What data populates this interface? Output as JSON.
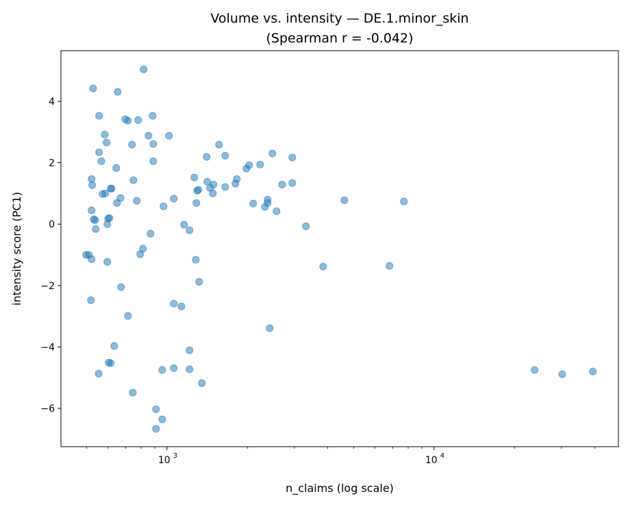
{
  "chart_data": {
    "type": "scatter",
    "title": "Volume vs. intensity — DE.1.minor_skin",
    "subtitle": "(Spearman r = -0.042)",
    "xlabel": "n_claims (log scale)",
    "ylabel": "intensity score (PC1)",
    "xscale": "log",
    "xlim": [
      401,
      49000
    ],
    "ylim": [
      -7.25,
      5.65
    ],
    "xticks": [
      {
        "value": 1000,
        "base": "10",
        "exp": "3"
      },
      {
        "value": 10000,
        "base": "10",
        "exp": "4"
      }
    ],
    "yticks": [
      4,
      2,
      0,
      -2,
      -4,
      -6
    ],
    "ytick_labels": [
      "4",
      "2",
      "0",
      "−2",
      "−4",
      "−6"
    ],
    "grid": false,
    "color": "#1f77b4",
    "alpha": 0.5,
    "points": [
      [
        818,
        5.04
      ],
      [
        529,
        4.42
      ],
      [
        654,
        4.31
      ],
      [
        557,
        3.53
      ],
      [
        698,
        3.42
      ],
      [
        714,
        3.37
      ],
      [
        780,
        3.39
      ],
      [
        884,
        3.53
      ],
      [
        585,
        2.92
      ],
      [
        594,
        2.66
      ],
      [
        740,
        2.59
      ],
      [
        853,
        2.88
      ],
      [
        889,
        2.61
      ],
      [
        1018,
        2.88
      ],
      [
        557,
        2.34
      ],
      [
        568,
        2.05
      ],
      [
        646,
        1.83
      ],
      [
        889,
        2.05
      ],
      [
        522,
        1.47
      ],
      [
        525,
        1.27
      ],
      [
        616,
        1.16
      ],
      [
        620,
        1.16
      ],
      [
        749,
        1.43
      ],
      [
        574,
        0.98
      ],
      [
        588,
        1.0
      ],
      [
        670,
        0.85
      ],
      [
        650,
        0.69
      ],
      [
        771,
        0.76
      ],
      [
        971,
        0.58
      ],
      [
        1061,
        0.83
      ],
      [
        522,
        0.45
      ],
      [
        532,
        0.16
      ],
      [
        538,
        0.13
      ],
      [
        602,
        0.18
      ],
      [
        609,
        0.2
      ],
      [
        598,
        0.0
      ],
      [
        541,
        -0.16
      ],
      [
        868,
        -0.31
      ],
      [
        813,
        -0.8
      ],
      [
        794,
        -0.98
      ],
      [
        498,
        -1.0
      ],
      [
        510,
        -1.0
      ],
      [
        522,
        -1.14
      ],
      [
        598,
        -1.23
      ],
      [
        673,
        -2.05
      ],
      [
        519,
        -2.48
      ],
      [
        714,
        -2.99
      ],
      [
        635,
        -3.97
      ],
      [
        605,
        -4.51
      ],
      [
        616,
        -4.53
      ],
      [
        555,
        -4.87
      ],
      [
        745,
        -5.49
      ],
      [
        960,
        -4.75
      ],
      [
        910,
        -6.03
      ],
      [
        960,
        -6.36
      ],
      [
        910,
        -6.67
      ],
      [
        1061,
        -2.59
      ],
      [
        1132,
        -2.68
      ],
      [
        1215,
        -4.11
      ],
      [
        1215,
        -4.73
      ],
      [
        1061,
        -4.69
      ],
      [
        1159,
        -0.02
      ],
      [
        1215,
        -0.2
      ],
      [
        1282,
        -1.16
      ],
      [
        1320,
        -1.88
      ],
      [
        1351,
        -5.18
      ],
      [
        1266,
        1.52
      ],
      [
        1297,
        1.09
      ],
      [
        1312,
        1.12
      ],
      [
        1289,
        0.69
      ],
      [
        1408,
        2.19
      ],
      [
        1416,
        1.38
      ],
      [
        1450,
        1.18
      ],
      [
        1494,
        1.29
      ],
      [
        1485,
        1.0
      ],
      [
        1566,
        2.59
      ],
      [
        1652,
        2.23
      ],
      [
        1652,
        1.21
      ],
      [
        1804,
        1.32
      ],
      [
        1826,
        1.47
      ],
      [
        1983,
        1.81
      ],
      [
        2031,
        1.92
      ],
      [
        2104,
        0.67
      ],
      [
        2233,
        1.94
      ],
      [
        2326,
        0.56
      ],
      [
        2382,
        0.8
      ],
      [
        2382,
        0.69
      ],
      [
        2425,
        -3.39
      ],
      [
        2482,
        2.3
      ],
      [
        2572,
        0.42
      ],
      [
        2698,
        1.29
      ],
      [
        2946,
        2.17
      ],
      [
        2946,
        1.34
      ],
      [
        3315,
        -0.07
      ],
      [
        3843,
        -1.38
      ],
      [
        4616,
        0.78
      ],
      [
        6810,
        -1.36
      ],
      [
        7710,
        0.74
      ],
      [
        23800,
        -4.75
      ],
      [
        30200,
        -4.89
      ],
      [
        39300,
        -4.8
      ]
    ]
  }
}
